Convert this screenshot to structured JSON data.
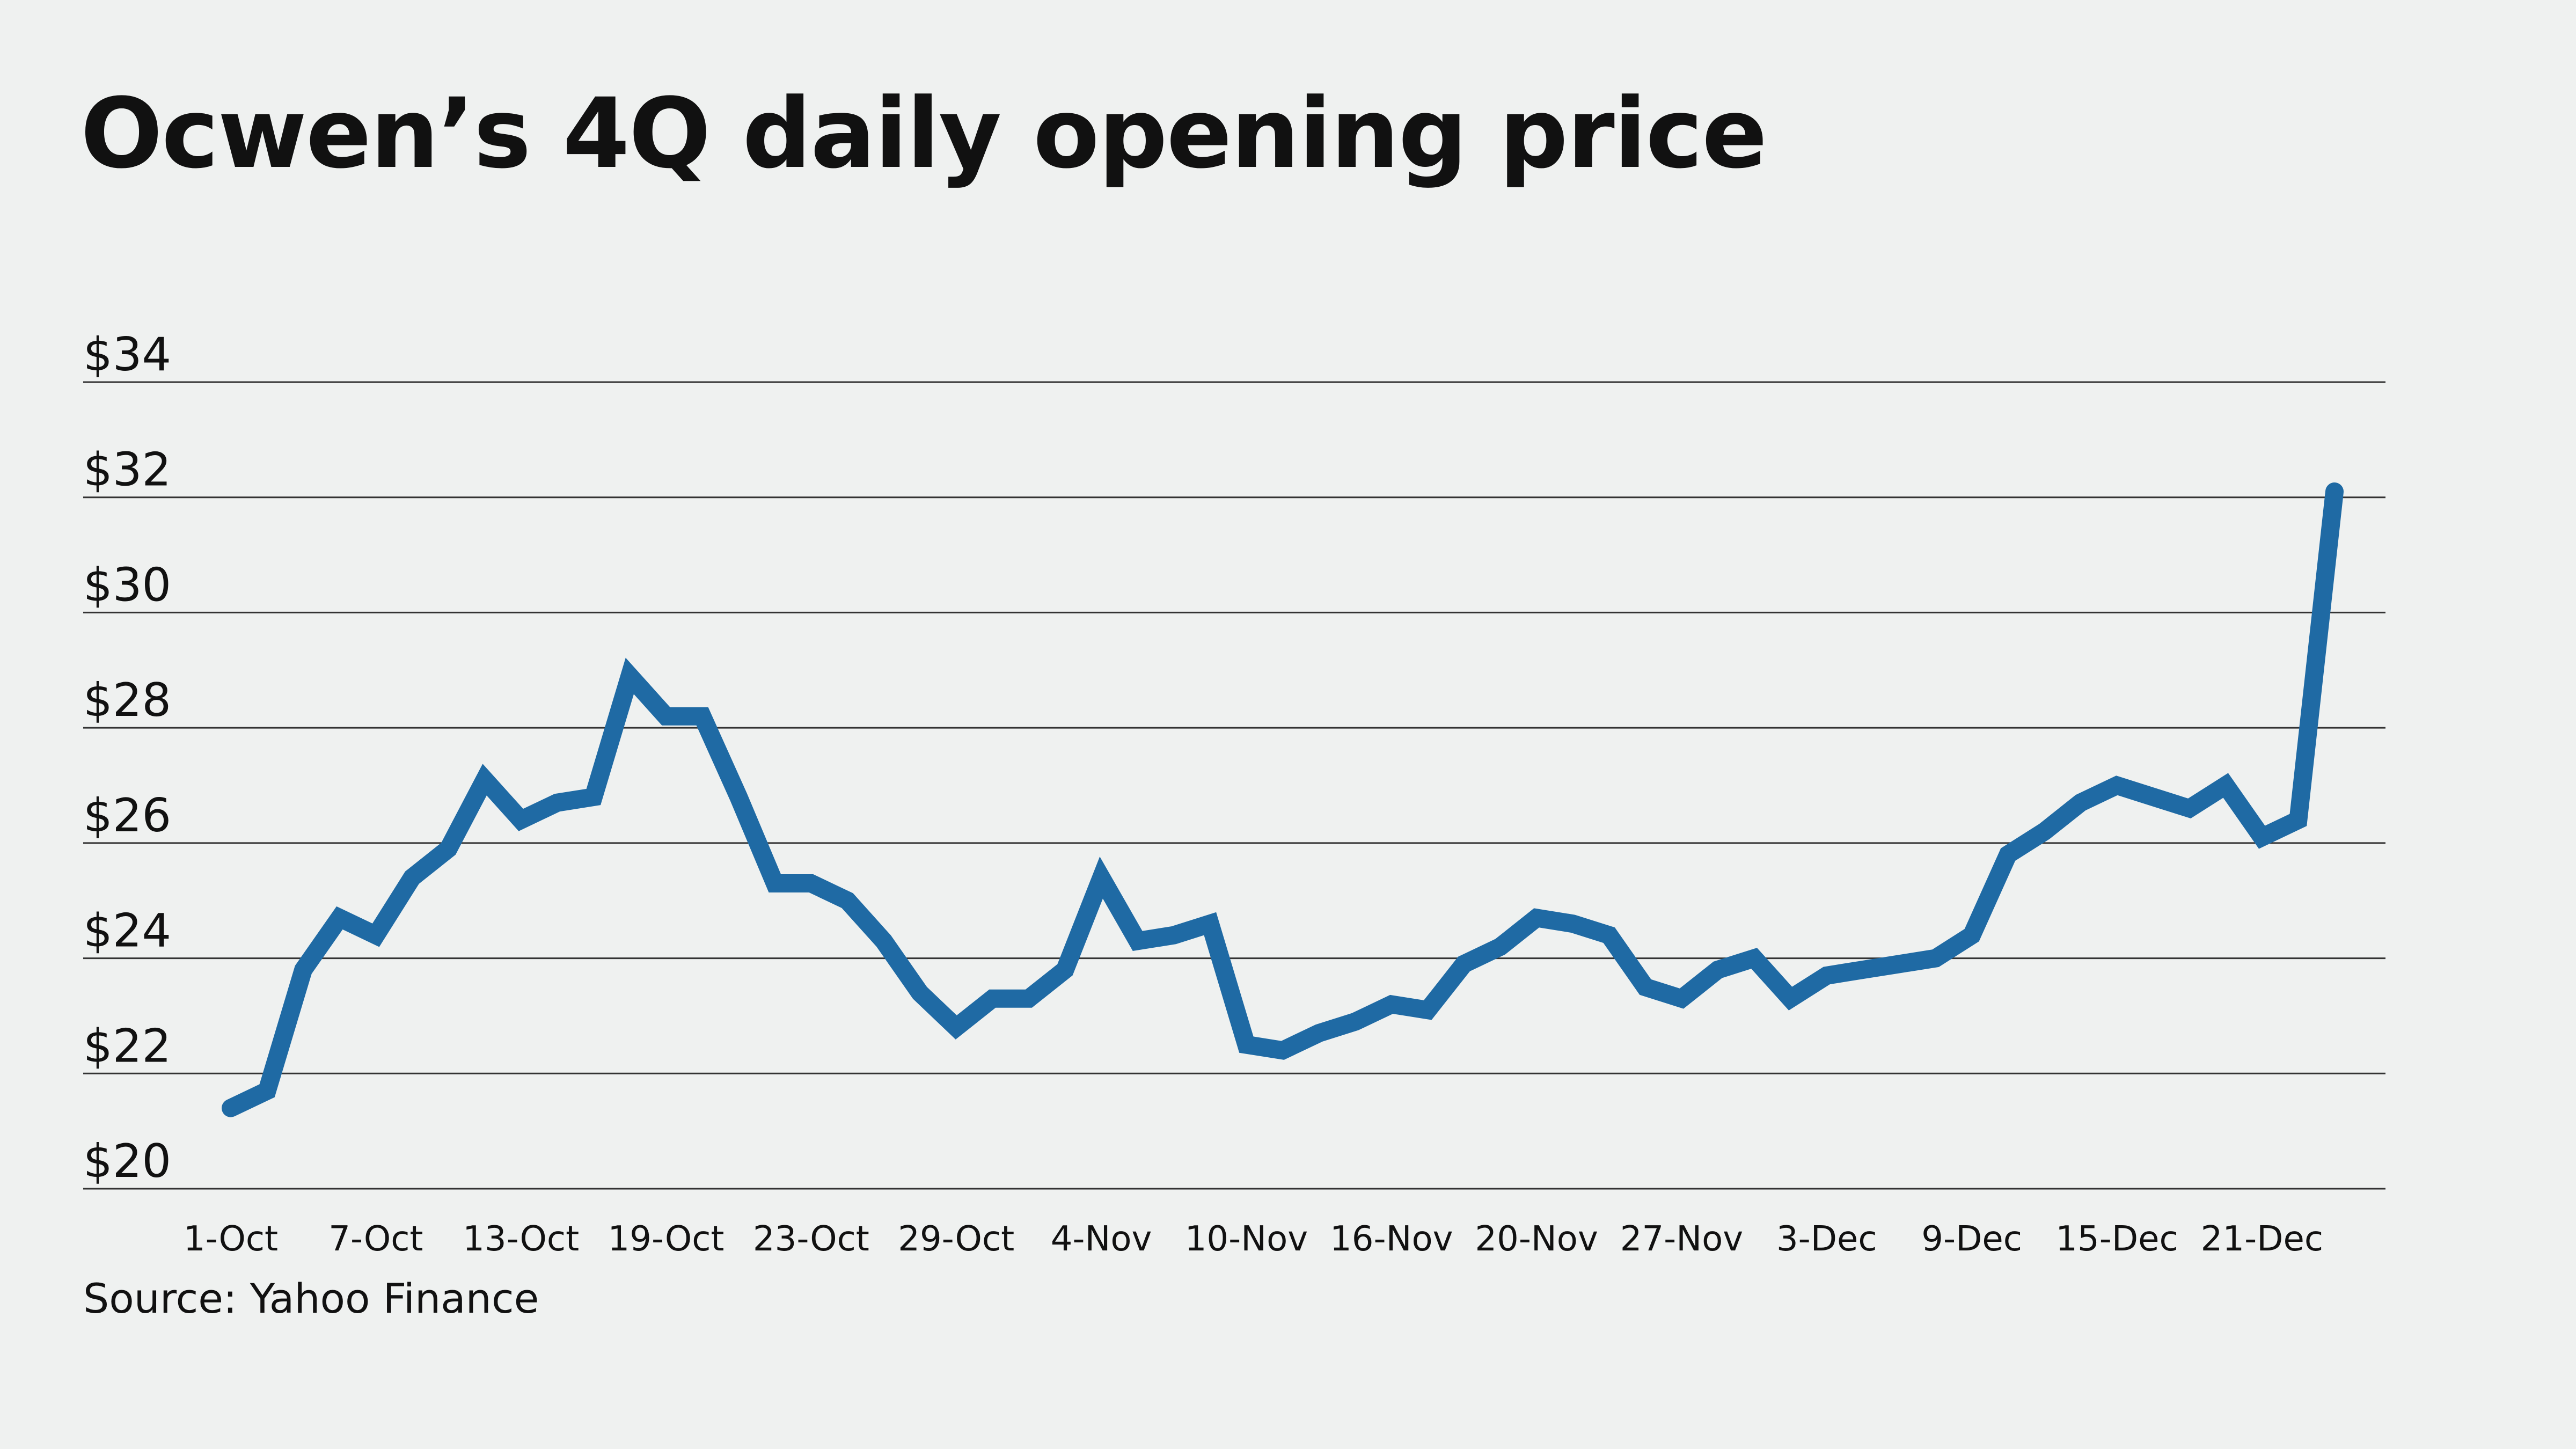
{
  "colors": {
    "background": "#eff1f0",
    "line": "#1f6aa4",
    "gridline": "#333333",
    "text": "#111111"
  },
  "source": "Source: Yahoo Finance",
  "chart_data": {
    "type": "line",
    "title": "Ocwen’s 4Q daily opening price",
    "xlabel": "",
    "ylabel": "",
    "ylim": [
      20,
      34
    ],
    "grid": true,
    "yticks": [
      {
        "value": 34,
        "label": "$34"
      },
      {
        "value": 32,
        "label": "$32"
      },
      {
        "value": 30,
        "label": "$30"
      },
      {
        "value": 28,
        "label": "$28"
      },
      {
        "value": 26,
        "label": "$26"
      },
      {
        "value": 24,
        "label": "$24"
      },
      {
        "value": 22,
        "label": "$22"
      },
      {
        "value": 20,
        "label": "$20"
      }
    ],
    "xticks": [
      {
        "index": 0,
        "label": "1-Oct"
      },
      {
        "index": 4,
        "label": "7-Oct"
      },
      {
        "index": 8,
        "label": "13-Oct"
      },
      {
        "index": 12,
        "label": "19-Oct"
      },
      {
        "index": 16,
        "label": "23-Oct"
      },
      {
        "index": 20,
        "label": "29-Oct"
      },
      {
        "index": 24,
        "label": "4-Nov"
      },
      {
        "index": 28,
        "label": "10-Nov"
      },
      {
        "index": 32,
        "label": "16-Nov"
      },
      {
        "index": 36,
        "label": "20-Nov"
      },
      {
        "index": 40,
        "label": "27-Nov"
      },
      {
        "index": 44,
        "label": "3-Dec"
      },
      {
        "index": 48,
        "label": "9-Dec"
      },
      {
        "index": 52,
        "label": "15-Dec"
      },
      {
        "index": 56,
        "label": "21-Dec"
      }
    ],
    "series": [
      {
        "name": "Opening price",
        "values": [
          21.4,
          21.7,
          23.8,
          24.7,
          24.4,
          25.4,
          25.9,
          27.1,
          26.4,
          26.7,
          26.8,
          28.9,
          28.2,
          28.2,
          26.8,
          25.3,
          25.3,
          25.0,
          24.3,
          23.4,
          22.8,
          23.3,
          23.3,
          23.8,
          25.4,
          24.3,
          24.4,
          24.6,
          22.5,
          22.4,
          22.7,
          22.9,
          23.2,
          23.1,
          23.9,
          24.2,
          24.7,
          24.6,
          24.4,
          23.5,
          23.3,
          23.8,
          24.0,
          23.3,
          23.7,
          23.8,
          23.9,
          24.0,
          24.4,
          25.8,
          26.2,
          26.7,
          27.0,
          26.8,
          26.6,
          27.0,
          26.1,
          26.4,
          32.1
        ]
      }
    ]
  }
}
